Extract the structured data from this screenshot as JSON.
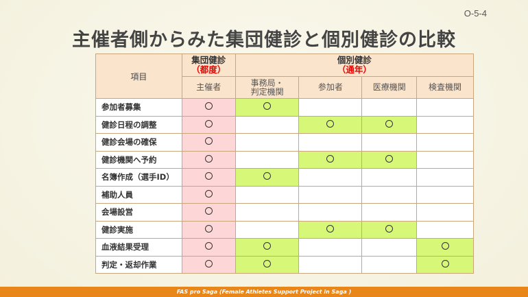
{
  "slide_code": "O-5-4",
  "title": "主催者側からみた集団健診と個別健診の比較",
  "table": {
    "item_header": "項目",
    "group1": {
      "label": "集団健診",
      "note": "（都度）"
    },
    "group2": {
      "label": "個別健診",
      "note": "（通年）"
    },
    "columns": [
      "主催者",
      "事務局・判定機関",
      "参加者",
      "医療機関",
      "検査機関"
    ],
    "mark": "○",
    "rows": [
      {
        "item": "参加者募集",
        "cells": [
          1,
          1,
          0,
          0,
          0
        ]
      },
      {
        "item": "健診日程の調整",
        "cells": [
          1,
          0,
          1,
          1,
          0
        ]
      },
      {
        "item": "健診会場の確保",
        "cells": [
          1,
          0,
          0,
          0,
          0
        ]
      },
      {
        "item": "健診機関へ予約",
        "cells": [
          1,
          0,
          1,
          1,
          0
        ]
      },
      {
        "item": "名簿作成（選手ID）",
        "cells": [
          1,
          1,
          0,
          0,
          0
        ]
      },
      {
        "item": "補助人員",
        "cells": [
          1,
          0,
          0,
          0,
          0
        ]
      },
      {
        "item": "会場設営",
        "cells": [
          1,
          0,
          0,
          0,
          0
        ]
      },
      {
        "item": "健診実施",
        "cells": [
          1,
          0,
          1,
          1,
          0
        ]
      },
      {
        "item": "血液結果受理",
        "cells": [
          1,
          1,
          0,
          0,
          1
        ]
      },
      {
        "item": "判定・返却作業",
        "cells": [
          1,
          1,
          0,
          0,
          1
        ]
      }
    ]
  },
  "colors": {
    "organizer": "#fdd7d7",
    "other": "#d7f779",
    "footer": "#e8861a"
  },
  "footer": "FAS pro Saga (Female Athletes Support Project in Saga )"
}
